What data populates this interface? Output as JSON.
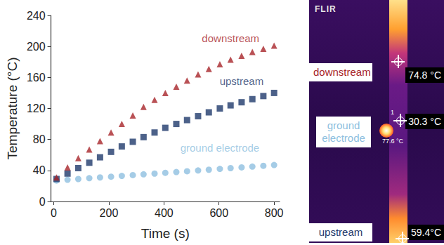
{
  "chart_data": {
    "type": "scatter",
    "x_label": "Time (s)",
    "y_label": "Temperature (°C)",
    "x": [
      10,
      50,
      89,
      129,
      168,
      208,
      247,
      287,
      326,
      366,
      405,
      445,
      484,
      524,
      563,
      603,
      642,
      682,
      721,
      761,
      800
    ],
    "series": [
      {
        "name": "downstream",
        "color": "#a8262b",
        "marker": "triangle",
        "values": [
          31,
          44,
          56,
          67,
          78,
          89,
          100,
          111,
          122,
          131,
          140,
          148,
          156,
          164,
          171,
          177,
          183,
          188,
          193,
          197,
          201
        ]
      },
      {
        "name": "upstream",
        "color": "#1f3a6b",
        "marker": "square",
        "values": [
          29,
          36,
          43,
          50,
          57,
          64,
          71,
          77,
          83,
          89,
          95,
          100,
          105,
          110,
          115,
          120,
          124,
          128,
          132,
          136,
          140
        ]
      },
      {
        "name": "ground electrode",
        "color": "#8ebfe0",
        "marker": "circle",
        "values": [
          27,
          28,
          29,
          30,
          31,
          32,
          33,
          34,
          35,
          36,
          37,
          38,
          39,
          40,
          41,
          42,
          43,
          44,
          45,
          46,
          47
        ]
      }
    ],
    "xlim": [
      -10,
      820
    ],
    "xticks": [
      0,
      200,
      400,
      600,
      800
    ],
    "ylim": [
      0,
      240
    ],
    "yticks": [
      0,
      40,
      80,
      120,
      160,
      200,
      240
    ],
    "grid": false
  },
  "thermal_image": {
    "logo": "FLIR",
    "labels": [
      "downstream",
      "ground electrode",
      "upstream"
    ],
    "readings": [
      "74.8 °C",
      "30.3 °C",
      "59.4°C"
    ],
    "spot_label": "77.6 °C",
    "spot_number": "1"
  }
}
